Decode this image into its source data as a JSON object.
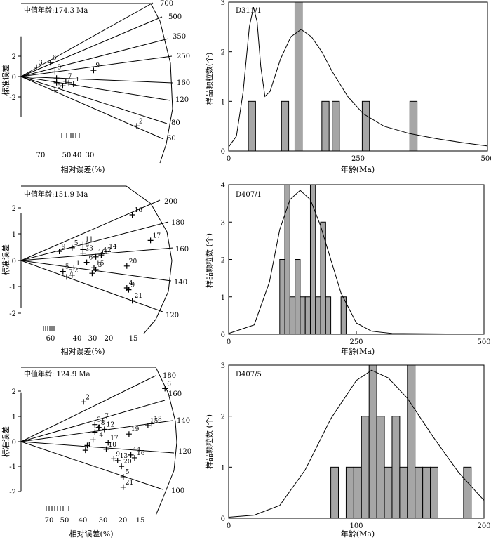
{
  "chart_data": [
    {
      "id": "radial_1",
      "type": "scatter",
      "subtype": "radial-plot",
      "title": "中值年龄:174.3 Ma",
      "ylabel": "标准误差",
      "xlabel": "相对误差(%)",
      "yticks": [
        "2",
        "0",
        "-2"
      ],
      "xticks": [
        "70",
        "50",
        "40",
        "30"
      ],
      "rays": [
        {
          "age": 700,
          "label": "700"
        },
        {
          "age": 500,
          "label": "500"
        },
        {
          "age": 350,
          "label": "350"
        },
        {
          "age": 250,
          "label": "250"
        },
        {
          "age": 160,
          "label": "160"
        },
        {
          "age": 120,
          "label": "120"
        },
        {
          "age": 80,
          "label": "80"
        },
        {
          "age": 60,
          "label": "60"
        }
      ],
      "points": [
        {
          "label": "2",
          "x": 7.5,
          "y": -3.2
        },
        {
          "label": "3",
          "x": 1.0,
          "y": 0.6
        },
        {
          "label": "5",
          "x": 2.2,
          "y": -0.9
        },
        {
          "label": "6",
          "x": 1.9,
          "y": 0.9
        },
        {
          "label": "7",
          "x": 2.9,
          "y": -0.3
        },
        {
          "label": "8",
          "x": 2.2,
          "y": 0.3
        },
        {
          "label": "9",
          "x": 4.7,
          "y": 0.4
        },
        {
          "label": "",
          "x": 2.3,
          "y": -0.4
        },
        {
          "label": "",
          "x": 2.3,
          "y": -0.1
        },
        {
          "label": "",
          "x": 2.7,
          "y": -0.6
        },
        {
          "label": "",
          "x": 3.1,
          "y": -0.4
        },
        {
          "label": "1",
          "x": 3.4,
          "y": -0.5
        }
      ]
    },
    {
      "id": "hist_1",
      "type": "bar",
      "subtype": "histogram-with-density",
      "title": "D311/1",
      "ylabel": "样品颗粒数(个)",
      "xlabel": "年龄(Ma)",
      "xlim": [
        0,
        500
      ],
      "ylim": [
        0,
        3
      ],
      "xticks": [
        "0",
        "250",
        "500"
      ],
      "yticks": [
        "0",
        "1",
        "2",
        "3"
      ],
      "bin_width": 14,
      "bins": [
        {
          "start": 38,
          "count": 1
        },
        {
          "start": 102,
          "count": 1
        },
        {
          "start": 128,
          "count": 3
        },
        {
          "start": 180,
          "count": 1
        },
        {
          "start": 200,
          "count": 1
        },
        {
          "start": 258,
          "count": 1
        },
        {
          "start": 350,
          "count": 1
        }
      ],
      "density_curve": [
        [
          0,
          0.08
        ],
        [
          15,
          0.3
        ],
        [
          28,
          1.2
        ],
        [
          40,
          2.5
        ],
        [
          48,
          2.9
        ],
        [
          55,
          2.6
        ],
        [
          62,
          1.7
        ],
        [
          70,
          1.1
        ],
        [
          80,
          1.2
        ],
        [
          100,
          1.85
        ],
        [
          120,
          2.3
        ],
        [
          140,
          2.45
        ],
        [
          160,
          2.3
        ],
        [
          180,
          2.0
        ],
        [
          200,
          1.6
        ],
        [
          230,
          1.1
        ],
        [
          260,
          0.75
        ],
        [
          300,
          0.5
        ],
        [
          350,
          0.35
        ],
        [
          400,
          0.25
        ],
        [
          450,
          0.17
        ],
        [
          500,
          0.1
        ]
      ]
    },
    {
      "id": "radial_2",
      "type": "scatter",
      "subtype": "radial-plot",
      "title": "中值年龄:151.9 Ma",
      "ylabel": "标准误差",
      "xlabel": "相对误差(%)",
      "yticks": [
        "2",
        "1",
        "0",
        "-1",
        "-2"
      ],
      "xticks": [
        "60",
        "40",
        "30",
        "20",
        "15"
      ],
      "rays": [
        {
          "age": 200,
          "label": "200"
        },
        {
          "age": 180,
          "label": "180"
        },
        {
          "age": 160,
          "label": "160"
        },
        {
          "age": 140,
          "label": "140"
        },
        {
          "age": 120,
          "label": "120"
        }
      ],
      "points": [
        {
          "label": "16",
          "x": 6.1,
          "y": 2.5
        },
        {
          "label": "17",
          "x": 7.1,
          "y": 1.1
        },
        {
          "label": "11",
          "x": 3.4,
          "y": 0.9
        },
        {
          "label": "5",
          "x": 2.8,
          "y": 0.7
        },
        {
          "label": "9",
          "x": 2.1,
          "y": 0.5
        },
        {
          "label": "8",
          "x": 3.4,
          "y": 0.6
        },
        {
          "label": "23",
          "x": 3.4,
          "y": 0.4
        },
        {
          "label": "14",
          "x": 4.7,
          "y": 0.5
        },
        {
          "label": "12",
          "x": 4.4,
          "y": 0.3
        },
        {
          "label": "10",
          "x": 4.1,
          "y": 0.2
        },
        {
          "label": "6",
          "x": 3.6,
          "y": -0.1
        },
        {
          "label": "1",
          "x": 2.9,
          "y": -0.4
        },
        {
          "label": "5",
          "x": 2.3,
          "y": -0.6
        },
        {
          "label": "7",
          "x": 2.5,
          "y": -0.9
        },
        {
          "label": "2",
          "x": 2.8,
          "y": -0.8
        },
        {
          "label": "15",
          "x": 4.0,
          "y": -0.4
        },
        {
          "label": "3",
          "x": 4.1,
          "y": -0.5
        },
        {
          "label": "",
          "x": 3.9,
          "y": -0.7
        },
        {
          "label": "20",
          "x": 5.8,
          "y": -0.3
        },
        {
          "label": "4",
          "x": 5.8,
          "y": -1.5
        },
        {
          "label": "9",
          "x": 5.9,
          "y": -1.6
        },
        {
          "label": "21",
          "x": 6.1,
          "y": -2.2
        }
      ]
    },
    {
      "id": "hist_2",
      "type": "bar",
      "subtype": "histogram-with-density",
      "title": "D407/1",
      "ylabel": "样品颗粒数 (个)",
      "xlabel": "年龄(Ma)",
      "xlim": [
        0,
        500
      ],
      "ylim": [
        0,
        4
      ],
      "xticks": [
        "0",
        "250",
        "500"
      ],
      "yticks": [
        "0",
        "1",
        "2",
        "3",
        "4"
      ],
      "bin_width": 10,
      "bins": [
        {
          "start": 100,
          "count": 2
        },
        {
          "start": 110,
          "count": 4
        },
        {
          "start": 120,
          "count": 1
        },
        {
          "start": 130,
          "count": 2
        },
        {
          "start": 140,
          "count": 1
        },
        {
          "start": 150,
          "count": 1
        },
        {
          "start": 160,
          "count": 4
        },
        {
          "start": 170,
          "count": 1
        },
        {
          "start": 180,
          "count": 3
        },
        {
          "start": 190,
          "count": 1
        },
        {
          "start": 220,
          "count": 1
        }
      ],
      "density_curve": [
        [
          0,
          0.02
        ],
        [
          50,
          0.25
        ],
        [
          80,
          1.4
        ],
        [
          100,
          2.8
        ],
        [
          120,
          3.6
        ],
        [
          140,
          3.85
        ],
        [
          160,
          3.6
        ],
        [
          180,
          2.9
        ],
        [
          200,
          2.0
        ],
        [
          220,
          1.1
        ],
        [
          250,
          0.3
        ],
        [
          280,
          0.08
        ],
        [
          320,
          0.02
        ],
        [
          500,
          0
        ]
      ]
    },
    {
      "id": "radial_3",
      "type": "scatter",
      "subtype": "radial-plot",
      "title": "中值年龄: 124.9 Ma",
      "ylabel": "标准误差",
      "xlabel": "相对误差(%)",
      "yticks": [
        "2",
        "1",
        "0",
        "-1",
        "-2"
      ],
      "xticks": [
        "70",
        "50",
        "40",
        "30",
        "20",
        "15"
      ],
      "rays": [
        {
          "age": 180,
          "label": "180"
        },
        {
          "age": 160,
          "label": "160"
        },
        {
          "age": 140,
          "label": "140"
        },
        {
          "age": 120,
          "label": "120"
        },
        {
          "age": 100,
          "label": "100"
        }
      ],
      "points": [
        {
          "label": "2",
          "x": 3.3,
          "y": 2.1
        },
        {
          "label": "6",
          "x": 7.6,
          "y": 2.8
        },
        {
          "label": "7",
          "x": 4.3,
          "y": 1.1
        },
        {
          "label": "3",
          "x": 3.9,
          "y": 0.9
        },
        {
          "label": "8",
          "x": 4.1,
          "y": 0.75
        },
        {
          "label": "12",
          "x": 4.4,
          "y": 0.65
        },
        {
          "label": "18",
          "x": 6.9,
          "y": 0.95
        },
        {
          "label": "15",
          "x": 6.7,
          "y": 0.85
        },
        {
          "label": "19",
          "x": 5.7,
          "y": 0.4
        },
        {
          "label": "4",
          "x": 3.9,
          "y": 0.5
        },
        {
          "label": "14",
          "x": 3.8,
          "y": 0.1
        },
        {
          "label": "17",
          "x": 4.6,
          "y": -0.05
        },
        {
          "label": "",
          "x": 3.5,
          "y": -0.2
        },
        {
          "label": "10",
          "x": 4.5,
          "y": -0.4
        },
        {
          "label": "1",
          "x": 3.4,
          "y": -0.45
        },
        {
          "label": "11",
          "x": 5.8,
          "y": -0.7
        },
        {
          "label": "16",
          "x": 6.0,
          "y": -0.85
        },
        {
          "label": "9",
          "x": 4.9,
          "y": -0.9
        },
        {
          "label": "13",
          "x": 5.1,
          "y": -1.0
        },
        {
          "label": "20",
          "x": 5.3,
          "y": -1.3
        },
        {
          "label": "5",
          "x": 5.4,
          "y": -1.85
        },
        {
          "label": "21",
          "x": 5.4,
          "y": -2.4
        }
      ]
    },
    {
      "id": "hist_3",
      "type": "bar",
      "subtype": "histogram-with-density",
      "title": "D407/5",
      "ylabel": "样品颗粒数 (个)",
      "xlabel": "年龄(Ma)",
      "xlim": [
        0,
        200
      ],
      "ylim": [
        0,
        3
      ],
      "xticks": [
        "0",
        "100",
        "200"
      ],
      "yticks": [
        "0",
        "1",
        "2",
        "3"
      ],
      "bin_width": 6,
      "bins": [
        {
          "start": 80,
          "count": 1
        },
        {
          "start": 92,
          "count": 1
        },
        {
          "start": 98,
          "count": 1
        },
        {
          "start": 104,
          "count": 2
        },
        {
          "start": 110,
          "count": 3
        },
        {
          "start": 116,
          "count": 2
        },
        {
          "start": 122,
          "count": 1
        },
        {
          "start": 128,
          "count": 2
        },
        {
          "start": 134,
          "count": 1
        },
        {
          "start": 140,
          "count": 3
        },
        {
          "start": 146,
          "count": 1
        },
        {
          "start": 152,
          "count": 1
        },
        {
          "start": 158,
          "count": 1
        },
        {
          "start": 184,
          "count": 1
        }
      ],
      "density_curve": [
        [
          0,
          0.02
        ],
        [
          20,
          0.06
        ],
        [
          40,
          0.25
        ],
        [
          60,
          0.95
        ],
        [
          80,
          1.95
        ],
        [
          100,
          2.7
        ],
        [
          112,
          2.9
        ],
        [
          125,
          2.75
        ],
        [
          140,
          2.35
        ],
        [
          160,
          1.6
        ],
        [
          180,
          0.9
        ],
        [
          200,
          0.35
        ]
      ]
    }
  ]
}
